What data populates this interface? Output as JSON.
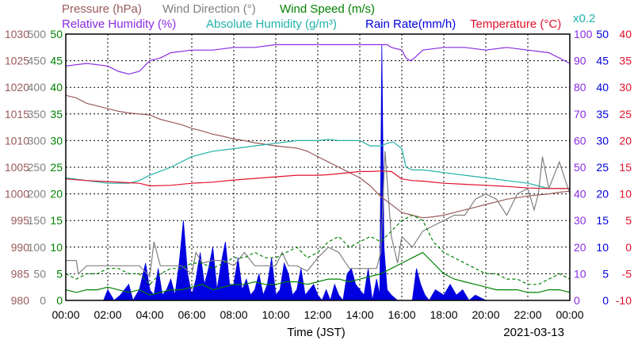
{
  "chart_data": {
    "type": "line",
    "date": "2021-03-13",
    "xlabel": "Time (JST)",
    "x_ticks": [
      "00:00",
      "02:00",
      "04:00",
      "06:00",
      "08:00",
      "10:00",
      "12:00",
      "14:00",
      "16:00",
      "18:00",
      "20:00",
      "22:00",
      "00:00"
    ],
    "x_range_hours": [
      0,
      24
    ],
    "grid": true,
    "legend": {
      "row1": [
        {
          "key": "pressure",
          "label": "Pressure (hPa)"
        },
        {
          "key": "wind_dir",
          "label": "Wind Direction (°)"
        },
        {
          "key": "wind_speed",
          "label": "Wind Speed (m/s)"
        }
      ],
      "row2": [
        {
          "key": "humidity",
          "label": "Relative Humidity (%)"
        },
        {
          "key": "abs_humidity",
          "label": "Absolute Humidity (g/m³)"
        },
        {
          "key": "rain",
          "label": "Rain Rate(mm/h)"
        },
        {
          "key": "temperature",
          "label": "Temperature (°C)"
        }
      ],
      "abs_note": "x0.2"
    },
    "colors": {
      "pressure": "#9a5a5a",
      "wind_dir": "#808080",
      "wind_speed": "#008000",
      "humidity": "#8a2be2",
      "abs_humidity": "#20b2aa",
      "rain": "#0000e0",
      "temperature": "#e0102a"
    },
    "axes": {
      "pressure": {
        "ticks": [
          "1030",
          "1025",
          "1020",
          "1015",
          "1010",
          "1005",
          "1000",
          "995",
          "990",
          "985",
          "980"
        ],
        "range": [
          980,
          1030
        ]
      },
      "wind_dir": {
        "ticks": [
          "500",
          "450",
          "400",
          "350",
          "300",
          "250",
          "200",
          "150",
          "100",
          "50",
          "0"
        ],
        "range": [
          0,
          500
        ]
      },
      "wind_speed": {
        "ticks": [
          "50",
          "45",
          "40",
          "35",
          "30",
          "25",
          "20",
          "15",
          "10",
          "5",
          "0"
        ],
        "range": [
          0,
          50
        ]
      },
      "humidity": {
        "ticks": [
          "100",
          "90",
          "80",
          "70",
          "60",
          "50",
          "40",
          "30",
          "20",
          "10",
          "0"
        ],
        "range": [
          0,
          100
        ]
      },
      "rain": {
        "ticks": [
          "50",
          "45",
          "40",
          "35",
          "30",
          "25",
          "20",
          "15",
          "10",
          "5",
          "0"
        ],
        "range": [
          0,
          50
        ]
      },
      "temperature": {
        "ticks": [
          "40",
          "35",
          "30",
          "25",
          "20",
          "15",
          "10",
          "5",
          "0",
          "-5",
          "-10"
        ],
        "range": [
          -10,
          40
        ]
      }
    },
    "series": [
      {
        "key": "pressure",
        "unit_axis": "pressure",
        "style": "solid",
        "x": [
          0,
          0.5,
          1,
          1.5,
          2,
          2.5,
          3,
          3.5,
          4,
          4.5,
          5,
          5.5,
          6,
          6.5,
          7,
          7.5,
          8,
          8.5,
          9,
          9.5,
          10,
          10.5,
          11,
          11.5,
          12,
          12.5,
          13,
          13.5,
          14,
          14.5,
          15,
          15.5,
          16,
          16.5,
          17,
          17.5,
          18,
          18.5,
          19,
          19.5,
          20,
          20.5,
          21,
          21.5,
          22,
          22.5,
          23,
          23.5,
          24
        ],
        "y": [
          1018.5,
          1018,
          1017,
          1016.5,
          1016,
          1015.5,
          1015.2,
          1015,
          1014.8,
          1014,
          1013.5,
          1013,
          1012.3,
          1011.8,
          1011.2,
          1010.8,
          1010.3,
          1010,
          1009.6,
          1009.3,
          1009,
          1008.8,
          1008.6,
          1008,
          1007,
          1006,
          1005,
          1004,
          1003,
          1001.5,
          999.5,
          998,
          996.5,
          996,
          995.5,
          995.7,
          996,
          996.5,
          997,
          997.5,
          998,
          998.5,
          999,
          999.3,
          999.6,
          999.8,
          1000,
          1000.3,
          1000.5
        ]
      },
      {
        "key": "abs_humidity",
        "unit_axis": "humidity",
        "style": "solid",
        "x": [
          0,
          1,
          2,
          3,
          3.5,
          4,
          5,
          6,
          7,
          8,
          9,
          10,
          11,
          12,
          12.5,
          13,
          14,
          14.5,
          15,
          15.3,
          15.6,
          16,
          16.2,
          16.5,
          17,
          18,
          19,
          20,
          20.5,
          21,
          22,
          22.5,
          23,
          24
        ],
        "y": [
          46,
          45,
          44,
          44,
          45,
          47,
          50,
          54,
          56,
          57,
          58,
          59,
          60,
          60,
          60.5,
          60,
          60,
          58,
          58,
          59,
          59.5,
          57,
          50,
          49,
          49,
          48,
          47,
          46,
          45.5,
          45,
          44,
          43,
          42,
          42
        ]
      },
      {
        "key": "humidity",
        "unit_axis": "humidity",
        "style": "solid",
        "x": [
          0,
          1,
          2,
          2.5,
          3,
          3.5,
          4,
          4.5,
          5,
          6,
          7,
          8,
          9,
          10,
          11,
          12,
          13,
          14,
          14.5,
          15,
          15.3,
          15.5,
          16,
          16.2,
          16.4,
          16.6,
          17,
          18,
          19,
          20,
          21,
          22,
          23,
          23.5,
          24
        ],
        "y": [
          88,
          89,
          88,
          86,
          85,
          86,
          90,
          91,
          93,
          94,
          94,
          95,
          95,
          96,
          96,
          96,
          96,
          96,
          96,
          96,
          96,
          95,
          94,
          91,
          90,
          91,
          94,
          95,
          95,
          94,
          95,
          94,
          93,
          91,
          89
        ]
      },
      {
        "key": "temperature",
        "unit_axis": "temperature",
        "style": "solid",
        "x": [
          0,
          1,
          2,
          3,
          3.5,
          4,
          5,
          6,
          7,
          8,
          9,
          10,
          11,
          12,
          12.5,
          13,
          14,
          14.5,
          15,
          15.5,
          16,
          16.5,
          17,
          18,
          19,
          20,
          21,
          22,
          23,
          23.5,
          24
        ],
        "y": [
          12.8,
          12.5,
          12.3,
          12.1,
          12,
          11.5,
          11.6,
          12,
          12.2,
          12.6,
          12.9,
          13.2,
          13.5,
          13.5,
          13.6,
          13.8,
          14.2,
          14.2,
          14.3,
          14.2,
          12.8,
          12.5,
          12.4,
          12,
          11.8,
          11.6,
          11.4,
          11.1,
          11,
          11,
          11
        ]
      },
      {
        "key": "wind_dir",
        "unit_axis": "wind_dir",
        "style": "solid",
        "x": [
          0,
          0.5,
          0.6,
          1,
          1.5,
          2,
          2.5,
          3,
          3.5,
          4,
          4.2,
          4.5,
          5,
          5.5,
          6,
          6.2,
          6.5,
          7,
          7.5,
          8,
          8.5,
          8.8,
          9,
          9.5,
          10,
          10.3,
          10.6,
          11,
          11.5,
          12,
          12.5,
          13,
          13.5,
          14,
          14.5,
          14.8,
          15,
          15.2,
          15.5,
          15.8,
          16,
          16.5,
          17,
          17.5,
          18,
          18.5,
          19,
          19.5,
          20,
          20.5,
          21,
          21.5,
          22,
          22.3,
          22.5,
          22.7,
          23,
          23.5,
          24
        ],
        "y": [
          75,
          75,
          50,
          65,
          65,
          65,
          65,
          65,
          65,
          45,
          110,
          65,
          65,
          65,
          50,
          90,
          70,
          75,
          75,
          65,
          90,
          75,
          65,
          65,
          65,
          90,
          65,
          65,
          55,
          80,
          100,
          90,
          60,
          60,
          60,
          60,
          90,
          280,
          120,
          70,
          120,
          100,
          130,
          140,
          150,
          160,
          160,
          190,
          200,
          190,
          160,
          200,
          210,
          170,
          200,
          270,
          210,
          260,
          200
        ]
      },
      {
        "key": "wind_speed",
        "unit_axis": "wind_speed",
        "style": "solid",
        "x": [
          0,
          0.5,
          1,
          1.5,
          2,
          2.5,
          3,
          3.5,
          4,
          4.5,
          5,
          5.5,
          6,
          6.5,
          7,
          7.5,
          8,
          8.5,
          9,
          9.5,
          10,
          10.5,
          11,
          11.5,
          12,
          12.5,
          13,
          13.5,
          14,
          14.5,
          15,
          15.5,
          16,
          16.5,
          17,
          17.5,
          18,
          18.5,
          19,
          19.5,
          20,
          20.5,
          21,
          21.5,
          22,
          22.5,
          23,
          23.5,
          24
        ],
        "y": [
          2,
          1.5,
          2,
          2,
          2.5,
          2,
          1.5,
          2,
          1,
          1.5,
          2,
          2,
          2.5,
          3,
          2,
          2.5,
          3,
          3,
          3.5,
          3,
          3,
          3.5,
          3.5,
          3,
          3.5,
          4,
          4,
          3.5,
          4,
          4.5,
          5,
          6,
          7,
          8,
          9,
          7,
          5,
          4,
          3.5,
          3,
          2.5,
          2,
          2,
          2,
          1.5,
          1.5,
          2,
          2,
          1.5
        ]
      },
      {
        "key": "wind_speed_gust",
        "unit_axis": "wind_speed",
        "style": "dashed",
        "x": [
          0,
          0.5,
          1,
          1.5,
          2,
          2.5,
          3,
          3.5,
          4,
          4.5,
          5,
          5.5,
          6,
          6.5,
          7,
          7.5,
          8,
          8.5,
          9,
          9.5,
          10,
          10.5,
          11,
          11.5,
          12,
          12.5,
          13,
          13.5,
          14,
          14.5,
          15,
          15.5,
          16,
          16.5,
          17,
          17.5,
          18,
          18.5,
          19,
          19.5,
          20,
          20.5,
          21,
          21.5,
          22,
          22.5,
          23,
          23.5,
          24
        ],
        "y": [
          5,
          4,
          5,
          5,
          6,
          6,
          5,
          5,
          3,
          5,
          6,
          6,
          7,
          7,
          6,
          7,
          8,
          8,
          9,
          8,
          8,
          9,
          10,
          8,
          9,
          11,
          12,
          10,
          11,
          12,
          11,
          13,
          15,
          16,
          15,
          11,
          9,
          8,
          7,
          6,
          5,
          5,
          4,
          4,
          3,
          3,
          4,
          5,
          4
        ]
      },
      {
        "key": "rain",
        "unit_axis": "rain",
        "style": "fill",
        "x": [
          0,
          1.8,
          2,
          2.3,
          2.6,
          3,
          3.2,
          3.5,
          3.8,
          4,
          4.2,
          4.4,
          4.6,
          4.8,
          5,
          5.2,
          5.4,
          5.6,
          5.8,
          6,
          6.2,
          6.4,
          6.6,
          6.8,
          7,
          7.2,
          7.4,
          7.6,
          7.8,
          8,
          8.2,
          8.4,
          8.6,
          8.8,
          9,
          9.2,
          9.4,
          9.6,
          9.8,
          10,
          10.2,
          10.4,
          10.6,
          10.8,
          11,
          11.2,
          11.4,
          11.6,
          11.8,
          12,
          12.2,
          12.4,
          12.6,
          12.8,
          13,
          13.2,
          13.4,
          13.6,
          13.8,
          14,
          14.2,
          14.4,
          14.6,
          14.8,
          14.95,
          15.05,
          15.15,
          15.3,
          15.5,
          15.8,
          16,
          16.3,
          16.5,
          16.7,
          16.9,
          17.1,
          17.3,
          17.6,
          18,
          18.3,
          18.6,
          18.9,
          19.2,
          19.5,
          20,
          24
        ],
        "y": [
          0,
          0,
          2,
          0,
          1,
          3,
          0,
          2,
          7,
          2,
          1,
          6,
          1,
          2,
          4,
          1,
          7,
          15,
          5,
          1,
          4,
          9,
          3,
          6,
          10,
          2,
          7,
          11,
          3,
          3,
          8,
          2,
          4,
          1,
          2,
          5,
          1,
          3,
          8,
          1,
          2,
          7,
          5,
          1,
          2,
          6,
          1,
          2,
          3,
          1,
          0,
          2,
          0,
          3,
          1,
          0,
          5,
          6,
          3,
          2,
          1,
          6,
          0,
          4,
          1,
          48,
          10,
          2,
          1,
          0,
          0,
          0,
          0,
          6,
          3,
          1,
          0,
          2,
          1,
          3,
          1,
          2,
          0,
          1,
          0,
          0
        ]
      }
    ]
  }
}
